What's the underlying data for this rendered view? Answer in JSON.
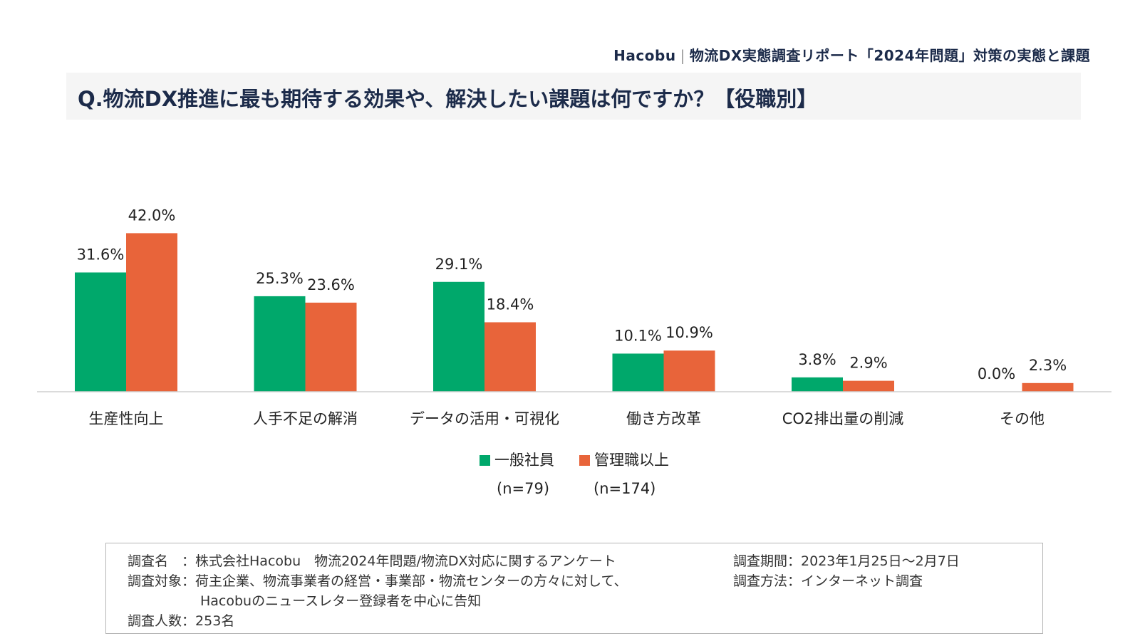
{
  "header": {
    "brand": "Hacobu",
    "report_title": "物流DX実態調査リポート「2024年問題」対策の実態と課題"
  },
  "question": "Q.物流DX推進に最も期待する効果や、解決したい課題は何ですか？【役職別】",
  "chart_data": {
    "type": "bar",
    "title": "Q.物流DX推進に最も期待する効果や、解決したい課題は何ですか？【役職別】",
    "categories": [
      "生産性向上",
      "人手不足の解消",
      "データの活用・可視化",
      "働き方改革",
      "CO2排出量の削減",
      "その他"
    ],
    "series": [
      {
        "name": "一般社員",
        "n_label": "(n=79)",
        "color": "#00a86b",
        "values": [
          31.6,
          25.3,
          29.1,
          10.1,
          3.8,
          0.0
        ]
      },
      {
        "name": "管理職以上",
        "n_label": "(n=174)",
        "color": "#e8643a",
        "values": [
          42.0,
          23.6,
          18.4,
          10.9,
          2.9,
          2.3
        ]
      }
    ],
    "value_suffix": "%",
    "ylim": [
      0,
      45
    ],
    "legend_position": "bottom-center"
  },
  "survey": {
    "name_label": "調査名　：",
    "name_value": "株式会社Hacobu　物流2024年問題/物流DX対応に関するアンケート",
    "target_label": "調査対象：",
    "target_value_1": "荷主企業、物流事業者の経営・事業部・物流センターの方々に対して、",
    "target_value_2": "Hacobuのニュースレター登録者を中心に告知",
    "count_label": "調査人数：",
    "count_value": "253名",
    "period_label": "調査期間：",
    "period_value": "2023年1月25日〜2月7日",
    "method_label": "調査方法：",
    "method_value": "インターネット調査"
  }
}
